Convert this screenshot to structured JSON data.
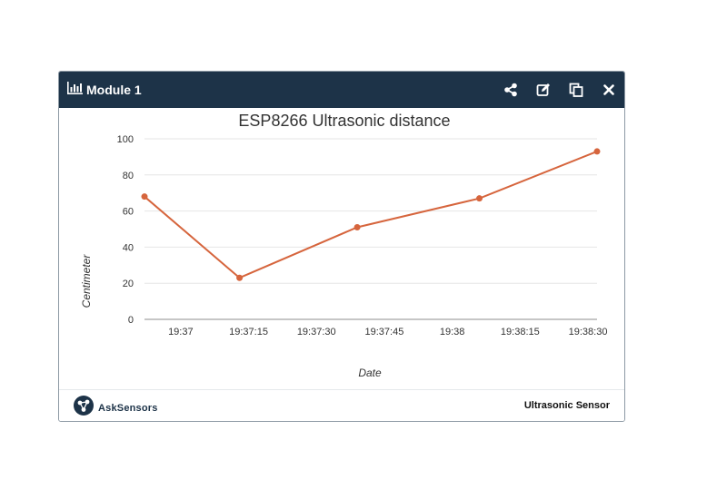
{
  "module": {
    "title": "Module 1",
    "title_icon": "bar-chart-icon",
    "tools": [
      {
        "name": "share-button",
        "icon": "share-icon"
      },
      {
        "name": "edit-button",
        "icon": "edit-icon"
      },
      {
        "name": "copy-button",
        "icon": "copy-icon"
      },
      {
        "name": "close-button",
        "icon": "close-icon"
      }
    ]
  },
  "chart_data": {
    "type": "line",
    "title": "ESP8266 Ultrasonic distance",
    "xlabel": "Date",
    "ylabel": "Centimeter",
    "ylim": [
      0,
      100
    ],
    "xlim": [
      "19:36:52",
      "19:38:32"
    ],
    "yticks": [
      0,
      20,
      40,
      60,
      80,
      100
    ],
    "xticks": [
      "19:37",
      "19:37:15",
      "19:37:30",
      "19:37:45",
      "19:38",
      "19:38:15",
      "19:38:30"
    ],
    "grid": true,
    "color": "#d6653d",
    "series": [
      {
        "x": [
          "19:36:52",
          "19:37:13",
          "19:37:39",
          "19:38:06",
          "19:38:32"
        ],
        "values": [
          68,
          23,
          51,
          67,
          93
        ]
      }
    ]
  },
  "footer": {
    "brand": "AskSensors",
    "brand_icon": "asksensors-logo-icon",
    "sensor": "Ultrasonic Sensor"
  }
}
